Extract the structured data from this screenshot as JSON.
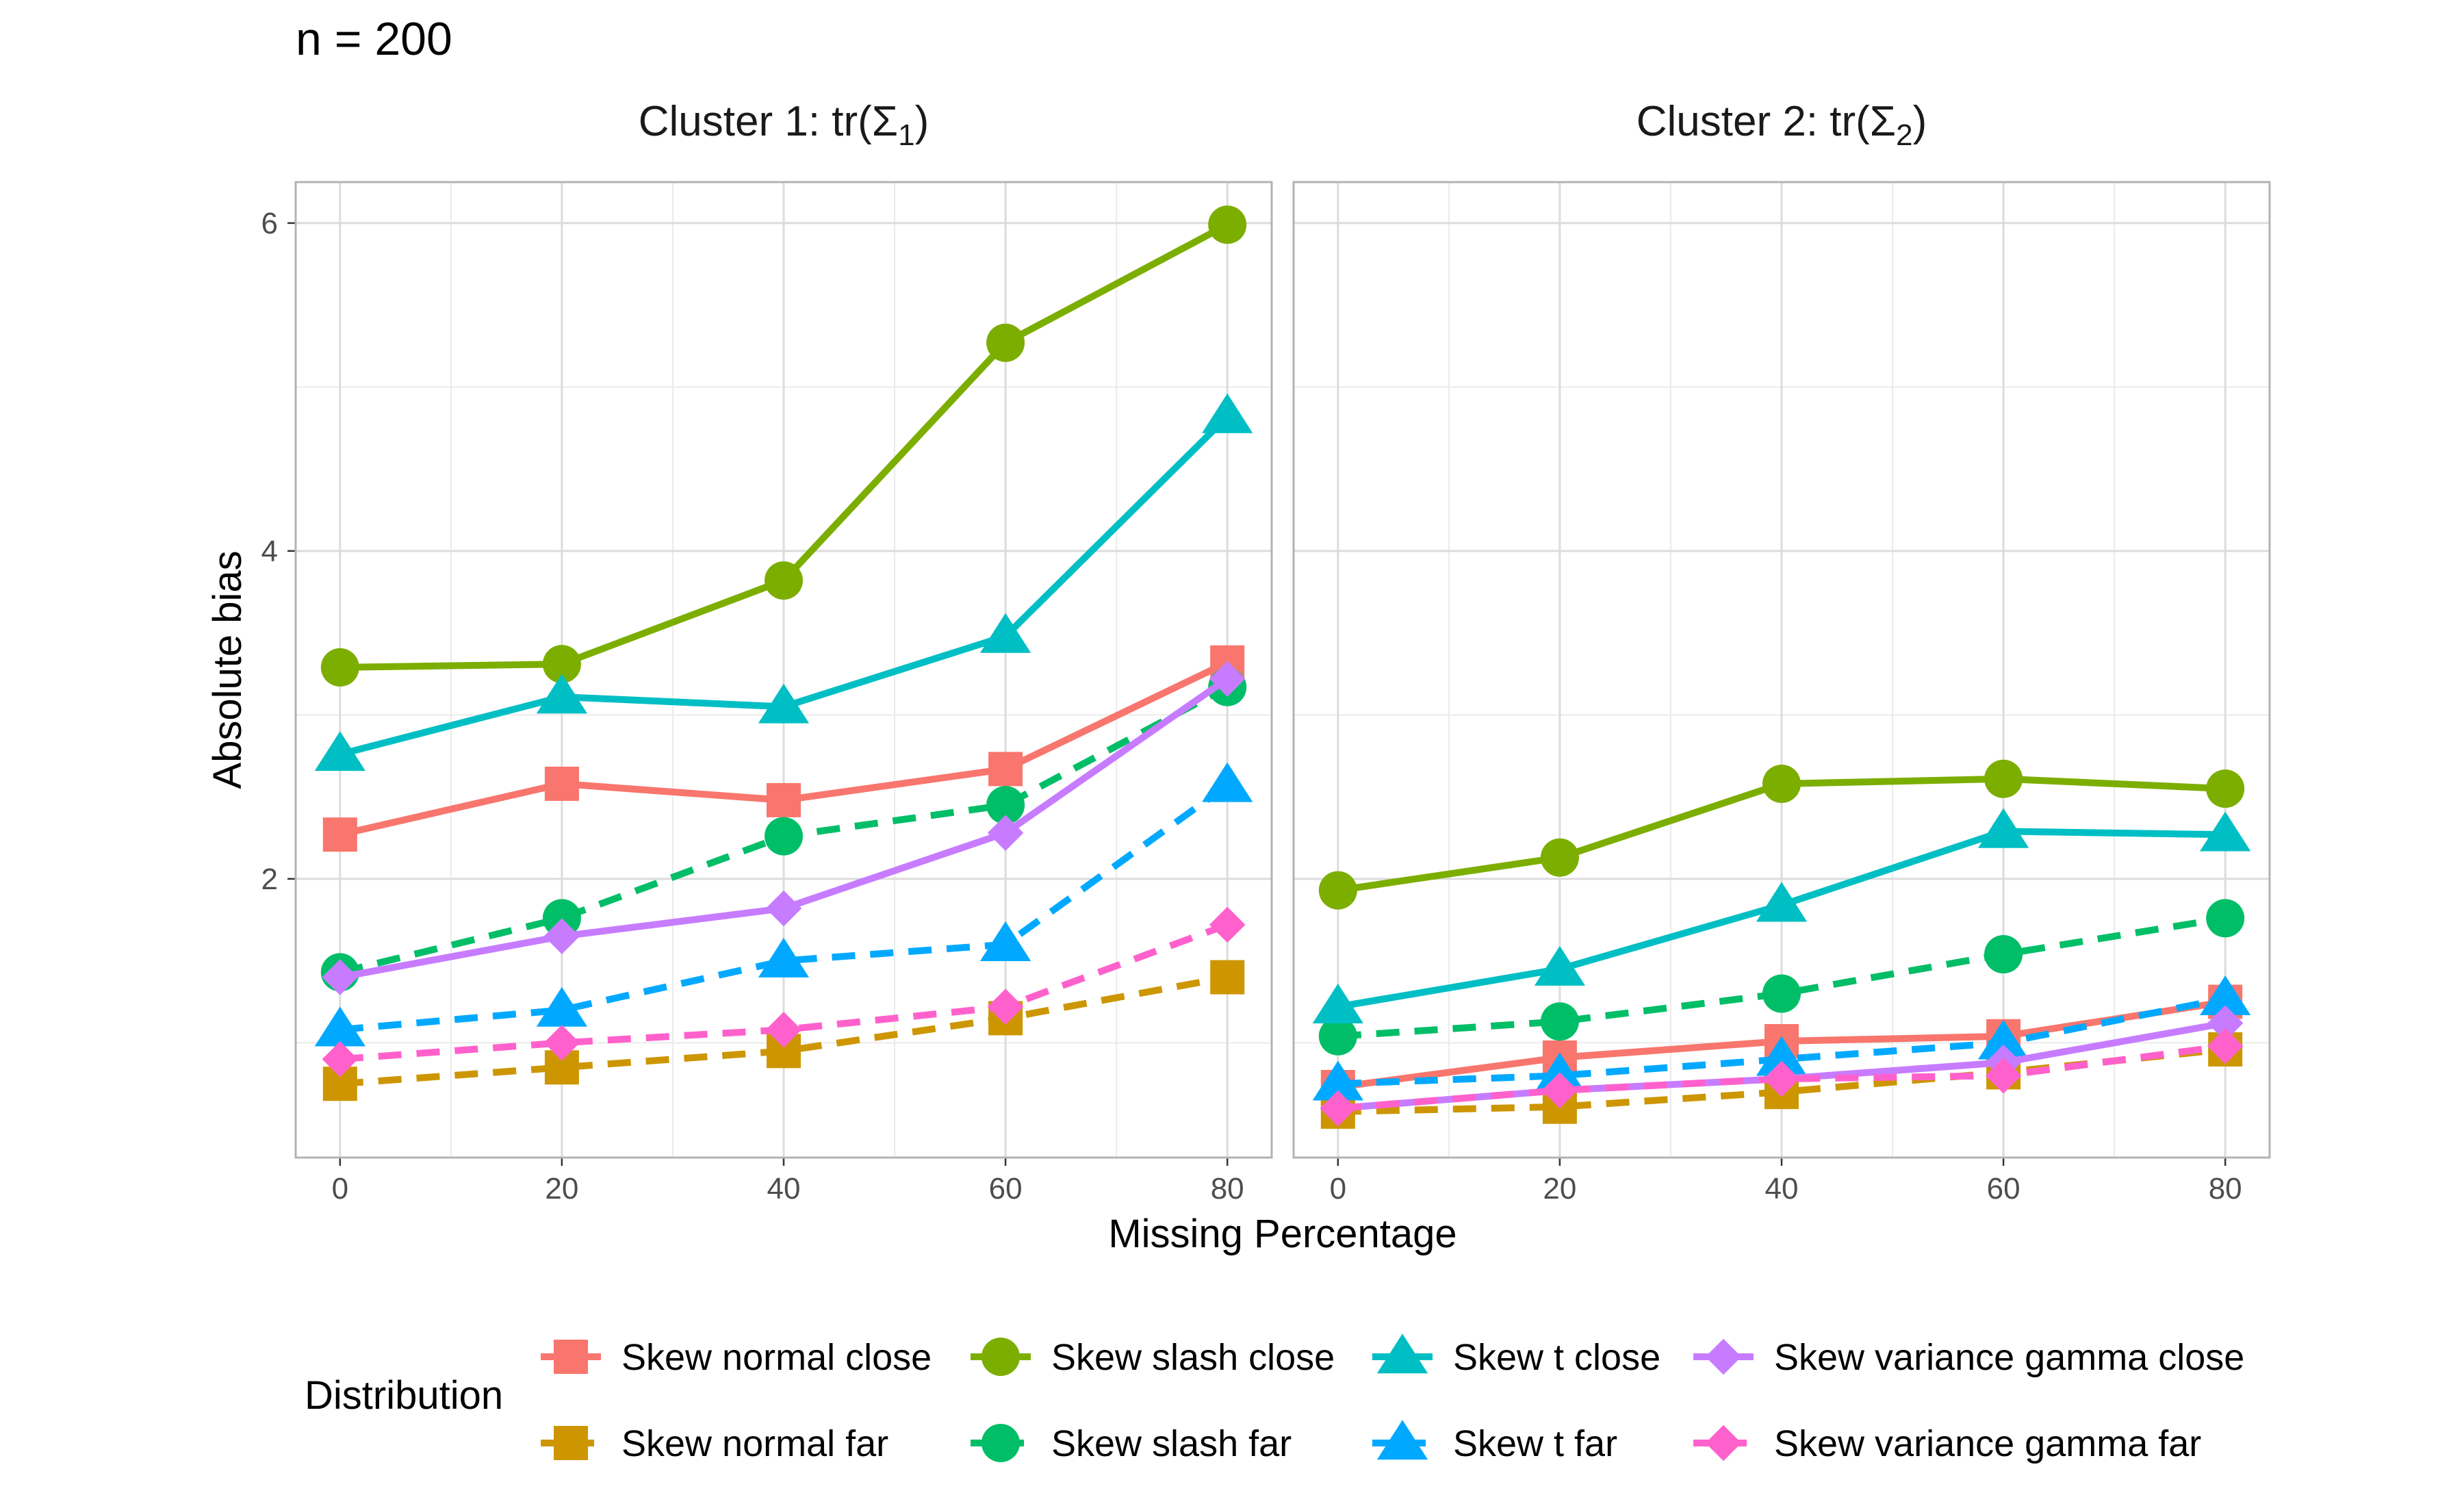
{
  "chart_data": {
    "type": "line",
    "title": "n = 200",
    "xlabel": "Missing Percentage",
    "ylabel": "Absolute bias",
    "x": [
      0,
      20,
      40,
      60,
      80
    ],
    "xticks": [
      "0",
      "20",
      "40",
      "60",
      "80"
    ],
    "yticks": [
      "2",
      "4",
      "6"
    ],
    "xlim": [
      -4,
      84
    ],
    "ylim": [
      0.3,
      6.25
    ],
    "grid": true,
    "legend": {
      "title": "Distribution",
      "position": "bottom"
    },
    "panels": [
      {
        "strip_prefix": "Cluster 1: tr(",
        "strip_symbol": "Σ",
        "strip_sub": "1",
        "strip_suffix": ")",
        "series": [
          {
            "name": "Skew normal close",
            "color": "#F8766D",
            "shape": "square",
            "dash": "solid",
            "values": [
              2.27,
              2.58,
              2.48,
              2.67,
              3.32
            ]
          },
          {
            "name": "Skew normal far",
            "color": "#CD9600",
            "shape": "square",
            "dash": "dashed",
            "values": [
              0.75,
              0.85,
              0.95,
              1.15,
              1.4
            ]
          },
          {
            "name": "Skew slash close",
            "color": "#7CAE00",
            "shape": "circle",
            "dash": "solid",
            "values": [
              3.29,
              3.31,
              3.82,
              5.27,
              5.99
            ]
          },
          {
            "name": "Skew slash far",
            "color": "#00BE67",
            "shape": "circle",
            "dash": "dashed",
            "values": [
              1.43,
              1.76,
              2.26,
              2.45,
              3.17
            ]
          },
          {
            "name": "Skew t close",
            "color": "#00BFC4",
            "shape": "triangle",
            "dash": "solid",
            "values": [
              2.76,
              3.11,
              3.05,
              3.48,
              4.82
            ]
          },
          {
            "name": "Skew t far",
            "color": "#00A9FF",
            "shape": "triangle",
            "dash": "dashed",
            "values": [
              1.08,
              1.2,
              1.5,
              1.6,
              2.57
            ]
          },
          {
            "name": "Skew variance gamma close",
            "color": "#C77CFF",
            "shape": "diamond",
            "dash": "solid",
            "values": [
              1.4,
              1.65,
              1.82,
              2.28,
              3.22
            ]
          },
          {
            "name": "Skew variance gamma far",
            "color": "#FF61CC",
            "shape": "diamond",
            "dash": "dashed",
            "values": [
              0.9,
              1.0,
              1.08,
              1.22,
              1.72
            ]
          }
        ]
      },
      {
        "strip_prefix": "Cluster 2: tr(",
        "strip_symbol": "Σ",
        "strip_sub": "2",
        "strip_suffix": ")",
        "series": [
          {
            "name": "Skew normal close",
            "color": "#F8766D",
            "shape": "square",
            "dash": "solid",
            "values": [
              0.73,
              0.91,
              1.01,
              1.04,
              1.25
            ]
          },
          {
            "name": "Skew normal far",
            "color": "#CD9600",
            "shape": "square",
            "dash": "dashed",
            "values": [
              0.58,
              0.61,
              0.7,
              0.82,
              0.96
            ]
          },
          {
            "name": "Skew slash close",
            "color": "#7CAE00",
            "shape": "circle",
            "dash": "solid",
            "values": [
              1.93,
              2.13,
              2.58,
              2.61,
              2.55
            ]
          },
          {
            "name": "Skew slash far",
            "color": "#00BE67",
            "shape": "circle",
            "dash": "dashed",
            "values": [
              1.04,
              1.13,
              1.3,
              1.54,
              1.76
            ]
          },
          {
            "name": "Skew t close",
            "color": "#00BFC4",
            "shape": "triangle",
            "dash": "solid",
            "values": [
              1.22,
              1.45,
              1.84,
              2.29,
              2.27
            ]
          },
          {
            "name": "Skew t far",
            "color": "#00A9FF",
            "shape": "triangle",
            "dash": "dashed",
            "values": [
              0.75,
              0.8,
              0.9,
              1.0,
              1.27
            ]
          },
          {
            "name": "Skew variance gamma close",
            "color": "#C77CFF",
            "shape": "diamond",
            "dash": "solid",
            "values": [
              0.6,
              0.71,
              0.78,
              0.88,
              1.12
            ]
          },
          {
            "name": "Skew variance gamma far",
            "color": "#FF61CC",
            "shape": "diamond",
            "dash": "dashed",
            "values": [
              0.6,
              0.71,
              0.78,
              0.8,
              0.98
            ]
          }
        ]
      }
    ]
  }
}
